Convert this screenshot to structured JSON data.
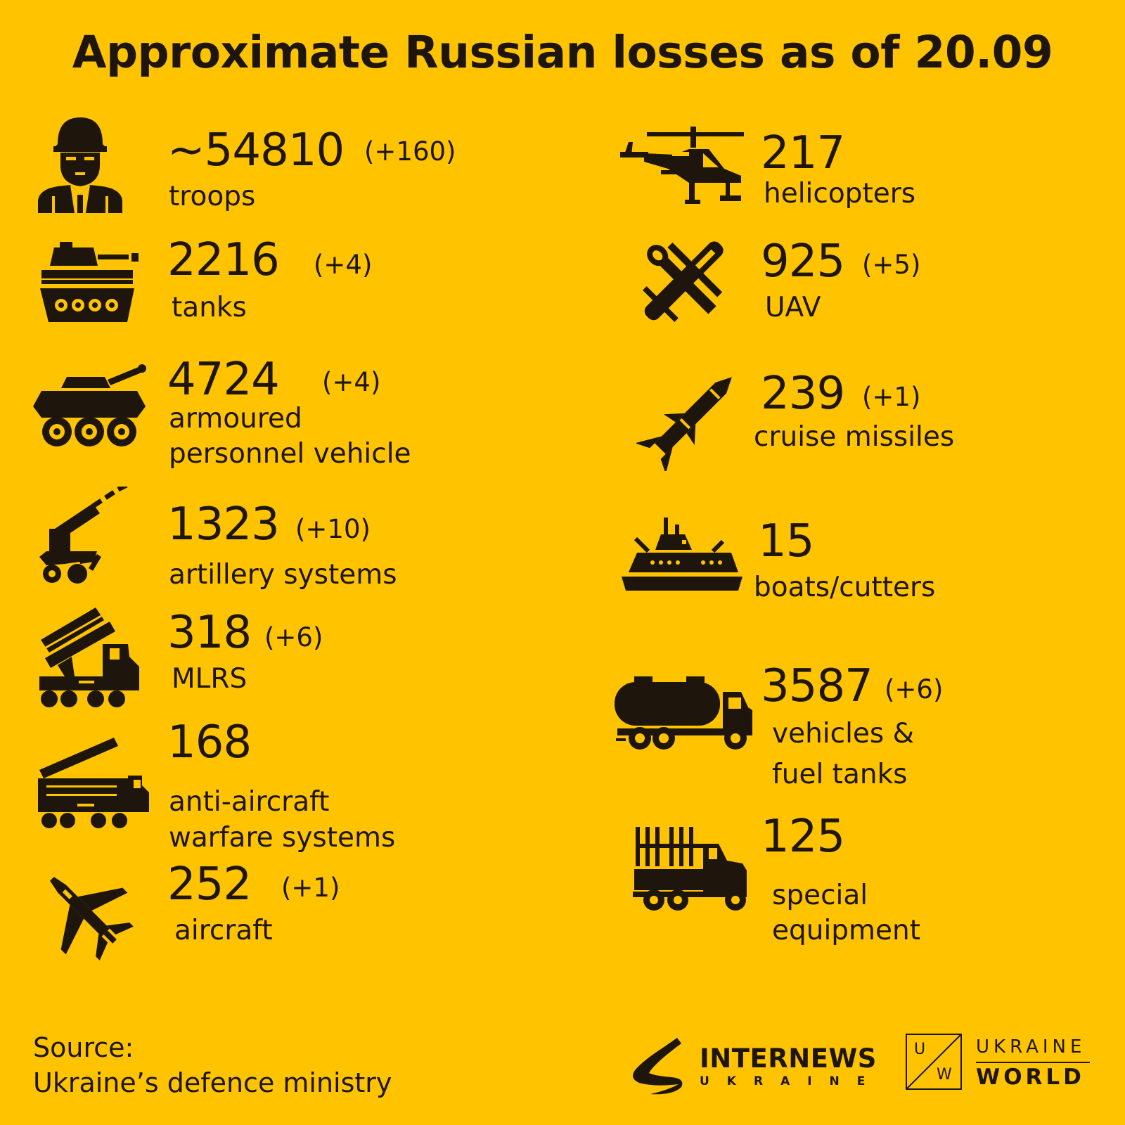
{
  "title": "Approximate Russian losses as of 20.09",
  "colors": {
    "background": "#FFC300",
    "ink": "#1E160C"
  },
  "left_items": [
    {
      "icon": "soldier-icon",
      "value": "~54810",
      "delta": "(+160)",
      "label": "troops"
    },
    {
      "icon": "tank-icon",
      "value": "2216",
      "delta": "(+4)",
      "label": "tanks"
    },
    {
      "icon": "apc-icon",
      "value": "4724",
      "delta": "(+4)",
      "label_line1": "armoured",
      "label_line2": "personnel vehicle"
    },
    {
      "icon": "artillery-icon",
      "value": "1323",
      "delta": "(+10)",
      "label": "artillery systems"
    },
    {
      "icon": "mlrs-icon",
      "value": "318",
      "delta": "(+6)",
      "label": "MLRS"
    },
    {
      "icon": "anti-aircraft-icon",
      "value": "168",
      "label_line1": "anti-aircraft",
      "label_line2": "warfare systems"
    },
    {
      "icon": "aircraft-icon",
      "value": "252",
      "delta": "(+1)",
      "label": "aircraft"
    }
  ],
  "right_items": [
    {
      "icon": "helicopter-icon",
      "value": "217",
      "label": "helicopters"
    },
    {
      "icon": "uav-icon",
      "value": "925",
      "delta": "(+5)",
      "label": "UAV"
    },
    {
      "icon": "cruise-missile-icon",
      "value": "239",
      "delta": "(+1)",
      "label": "cruise missiles"
    },
    {
      "icon": "boat-icon",
      "value": "15",
      "label": "boats/cutters"
    },
    {
      "icon": "fuel-truck-icon",
      "value": "3587",
      "delta": "(+6)",
      "label_line1": "vehicles &",
      "label_line2": "fuel tanks"
    },
    {
      "icon": "special-equipment-icon",
      "value": "125",
      "label_line1": "special",
      "label_line2": "equipment"
    }
  ],
  "source": {
    "line1": "Source:",
    "line2": "Ukraine’s defence ministry"
  },
  "logos": {
    "internews_name": "INTERNEWS",
    "internews_sub": "UKRAINE",
    "uw_box_top": "U",
    "uw_box_bottom": "W",
    "uw_line1": "UKRAINE",
    "uw_line2": "WORLD"
  }
}
